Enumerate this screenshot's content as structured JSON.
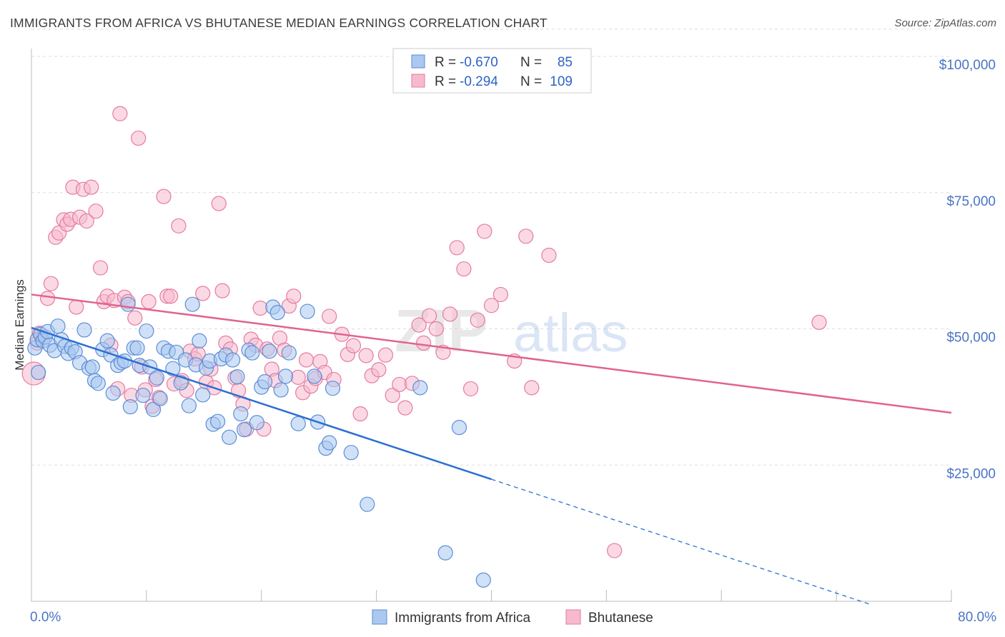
{
  "title": "IMMIGRANTS FROM AFRICA VS BHUTANESE MEDIAN EARNINGS CORRELATION CHART",
  "source": "Source: ZipAtlas.com",
  "watermark": {
    "zip": "ZIP",
    "atlas": "atlas"
  },
  "colors": {
    "blue_fill": "#aac8f0",
    "blue_stroke": "#5b8dd6",
    "blue_line": "#2d6fd2",
    "pink_fill": "#f6b9cd",
    "pink_stroke": "#e67a9f",
    "pink_line": "#e0648e",
    "grid": "#dddddd",
    "axis_text": "#4a74c4"
  },
  "legend": {
    "rows": [
      {
        "r_label": "R =",
        "r_value": "-0.670",
        "n_label": "N =",
        "n_value": "85",
        "series": "blue"
      },
      {
        "r_label": "R =",
        "r_value": "-0.294",
        "n_label": "N =",
        "n_value": "109",
        "series": "pink"
      }
    ]
  },
  "bottom_legend": [
    "Immigrants from Africa",
    "Bhutanese"
  ],
  "chart_data": {
    "type": "scatter",
    "title": "IMMIGRANTS FROM AFRICA VS BHUTANESE MEDIAN EARNINGS CORRELATION CHART",
    "xlabel": "",
    "ylabel": "Median Earnings",
    "xlim": [
      0,
      80
    ],
    "ylim": [
      0,
      105000
    ],
    "x_tick_labels": [
      "0.0%",
      "80.0%"
    ],
    "y_ticks": [
      25000,
      50000,
      75000,
      100000
    ],
    "y_tick_labels": [
      "$25,000",
      "$50,000",
      "$75,000",
      "$100,000"
    ],
    "grid": true,
    "legend_placement": "top-center",
    "series": [
      {
        "name": "Immigrants from Africa",
        "r": -0.67,
        "n": 85,
        "trend": {
          "x0": 0,
          "y0": 50200,
          "x1": 40,
          "y1": 22400,
          "dash_to_x": 73,
          "dash_to_y": -600
        },
        "points": [
          [
            0.3,
            46500
          ],
          [
            0.5,
            48000
          ],
          [
            0.6,
            42000
          ],
          [
            0.8,
            49000
          ],
          [
            1.0,
            47800
          ],
          [
            1.2,
            48500
          ],
          [
            1.4,
            49500
          ],
          [
            1.6,
            47000
          ],
          [
            2.0,
            46000
          ],
          [
            2.3,
            50500
          ],
          [
            2.6,
            48000
          ],
          [
            2.9,
            46800
          ],
          [
            3.2,
            45500
          ],
          [
            3.5,
            46500
          ],
          [
            3.8,
            45800
          ],
          [
            4.2,
            43800
          ],
          [
            4.6,
            49800
          ],
          [
            5.0,
            42800
          ],
          [
            5.3,
            43000
          ],
          [
            5.5,
            40500
          ],
          [
            5.8,
            40000
          ],
          [
            6.2,
            46200
          ],
          [
            6.6,
            47800
          ],
          [
            6.9,
            45200
          ],
          [
            7.1,
            38200
          ],
          [
            7.5,
            43300
          ],
          [
            7.8,
            43800
          ],
          [
            8.1,
            44100
          ],
          [
            8.4,
            54500
          ],
          [
            8.6,
            35700
          ],
          [
            8.9,
            46500
          ],
          [
            9.2,
            46500
          ],
          [
            9.4,
            43300
          ],
          [
            9.7,
            37800
          ],
          [
            10.0,
            49600
          ],
          [
            10.3,
            43000
          ],
          [
            10.6,
            35200
          ],
          [
            10.9,
            41000
          ],
          [
            11.2,
            37200
          ],
          [
            11.5,
            46500
          ],
          [
            11.9,
            45900
          ],
          [
            12.3,
            42700
          ],
          [
            12.6,
            45700
          ],
          [
            13.0,
            40100
          ],
          [
            13.4,
            44300
          ],
          [
            13.7,
            35900
          ],
          [
            14.0,
            54500
          ],
          [
            14.3,
            43400
          ],
          [
            14.6,
            47800
          ],
          [
            14.9,
            37900
          ],
          [
            15.2,
            42800
          ],
          [
            15.5,
            44100
          ],
          [
            15.8,
            32500
          ],
          [
            16.2,
            33000
          ],
          [
            16.5,
            44500
          ],
          [
            16.9,
            45200
          ],
          [
            17.2,
            30100
          ],
          [
            17.5,
            44300
          ],
          [
            17.9,
            41200
          ],
          [
            18.2,
            34400
          ],
          [
            18.5,
            31500
          ],
          [
            18.9,
            46100
          ],
          [
            19.2,
            45600
          ],
          [
            19.6,
            32800
          ],
          [
            20.0,
            39300
          ],
          [
            20.3,
            40300
          ],
          [
            20.7,
            45900
          ],
          [
            21.0,
            54000
          ],
          [
            21.4,
            53000
          ],
          [
            21.7,
            38800
          ],
          [
            22.1,
            41300
          ],
          [
            22.4,
            45600
          ],
          [
            23.2,
            32600
          ],
          [
            24.0,
            53200
          ],
          [
            24.6,
            41300
          ],
          [
            24.9,
            32900
          ],
          [
            25.6,
            28100
          ],
          [
            25.9,
            29100
          ],
          [
            26.2,
            39100
          ],
          [
            27.8,
            27300
          ],
          [
            29.2,
            17800
          ],
          [
            33.8,
            39200
          ],
          [
            36.0,
            8900
          ],
          [
            37.2,
            31900
          ],
          [
            39.3,
            3900
          ]
        ]
      },
      {
        "name": "Bhutanese",
        "r": -0.294,
        "n": 109,
        "trend": {
          "x0": 0,
          "y0": 56300,
          "x1": 80,
          "y1": 34600
        },
        "points": [
          [
            0.2,
            41800
          ],
          [
            0.5,
            47400
          ],
          [
            0.7,
            49200
          ],
          [
            0.9,
            48300
          ],
          [
            1.4,
            55600
          ],
          [
            1.7,
            58300
          ],
          [
            2.1,
            66800
          ],
          [
            2.4,
            67600
          ],
          [
            2.8,
            70000
          ],
          [
            3.1,
            69200
          ],
          [
            3.4,
            70100
          ],
          [
            3.6,
            76000
          ],
          [
            3.9,
            54000
          ],
          [
            4.2,
            70500
          ],
          [
            4.5,
            75600
          ],
          [
            4.8,
            69800
          ],
          [
            5.2,
            76000
          ],
          [
            5.6,
            71600
          ],
          [
            6.0,
            61200
          ],
          [
            6.3,
            55000
          ],
          [
            6.6,
            56000
          ],
          [
            6.9,
            47000
          ],
          [
            7.2,
            55200
          ],
          [
            7.5,
            39000
          ],
          [
            7.7,
            89500
          ],
          [
            8.1,
            55800
          ],
          [
            8.4,
            55000
          ],
          [
            8.7,
            37800
          ],
          [
            9.0,
            52000
          ],
          [
            9.3,
            85000
          ],
          [
            9.6,
            43000
          ],
          [
            9.9,
            38800
          ],
          [
            10.2,
            55000
          ],
          [
            10.5,
            35800
          ],
          [
            10.8,
            40700
          ],
          [
            11.1,
            37400
          ],
          [
            11.5,
            74300
          ],
          [
            11.8,
            56000
          ],
          [
            12.1,
            56000
          ],
          [
            12.4,
            39900
          ],
          [
            12.8,
            68900
          ],
          [
            13.1,
            40500
          ],
          [
            13.5,
            38700
          ],
          [
            13.8,
            45900
          ],
          [
            14.2,
            44500
          ],
          [
            14.5,
            45400
          ],
          [
            14.9,
            56500
          ],
          [
            15.2,
            40200
          ],
          [
            15.6,
            42600
          ],
          [
            15.9,
            39200
          ],
          [
            16.3,
            73000
          ],
          [
            16.6,
            57000
          ],
          [
            16.9,
            47400
          ],
          [
            17.3,
            46300
          ],
          [
            17.7,
            41000
          ],
          [
            18.0,
            38700
          ],
          [
            18.4,
            36200
          ],
          [
            18.7,
            31600
          ],
          [
            19.1,
            48100
          ],
          [
            19.5,
            47000
          ],
          [
            19.9,
            53800
          ],
          [
            20.2,
            31600
          ],
          [
            20.5,
            46300
          ],
          [
            20.9,
            42600
          ],
          [
            21.2,
            40500
          ],
          [
            21.6,
            48300
          ],
          [
            22.0,
            46100
          ],
          [
            22.4,
            54200
          ],
          [
            22.8,
            56000
          ],
          [
            23.2,
            41100
          ],
          [
            23.6,
            38300
          ],
          [
            23.9,
            44300
          ],
          [
            24.3,
            39500
          ],
          [
            24.7,
            40900
          ],
          [
            25.1,
            44000
          ],
          [
            25.5,
            42000
          ],
          [
            25.9,
            52300
          ],
          [
            26.3,
            40700
          ],
          [
            27.0,
            49000
          ],
          [
            27.5,
            45300
          ],
          [
            28.0,
            46900
          ],
          [
            28.6,
            34400
          ],
          [
            29.1,
            45100
          ],
          [
            29.6,
            41400
          ],
          [
            30.2,
            42500
          ],
          [
            30.8,
            45200
          ],
          [
            31.4,
            37800
          ],
          [
            32.0,
            39800
          ],
          [
            32.5,
            35500
          ],
          [
            33.1,
            40000
          ],
          [
            33.7,
            50700
          ],
          [
            34.1,
            47400
          ],
          [
            34.6,
            52400
          ],
          [
            35.2,
            50000
          ],
          [
            35.8,
            45700
          ],
          [
            36.4,
            52700
          ],
          [
            37.0,
            64900
          ],
          [
            37.6,
            61000
          ],
          [
            38.2,
            39000
          ],
          [
            38.8,
            51600
          ],
          [
            39.4,
            67900
          ],
          [
            40.0,
            54300
          ],
          [
            40.8,
            56300
          ],
          [
            42.0,
            44100
          ],
          [
            43.0,
            67000
          ],
          [
            43.5,
            39200
          ],
          [
            45.0,
            63500
          ],
          [
            50.7,
            9300
          ],
          [
            68.5,
            51200
          ]
        ]
      }
    ]
  }
}
